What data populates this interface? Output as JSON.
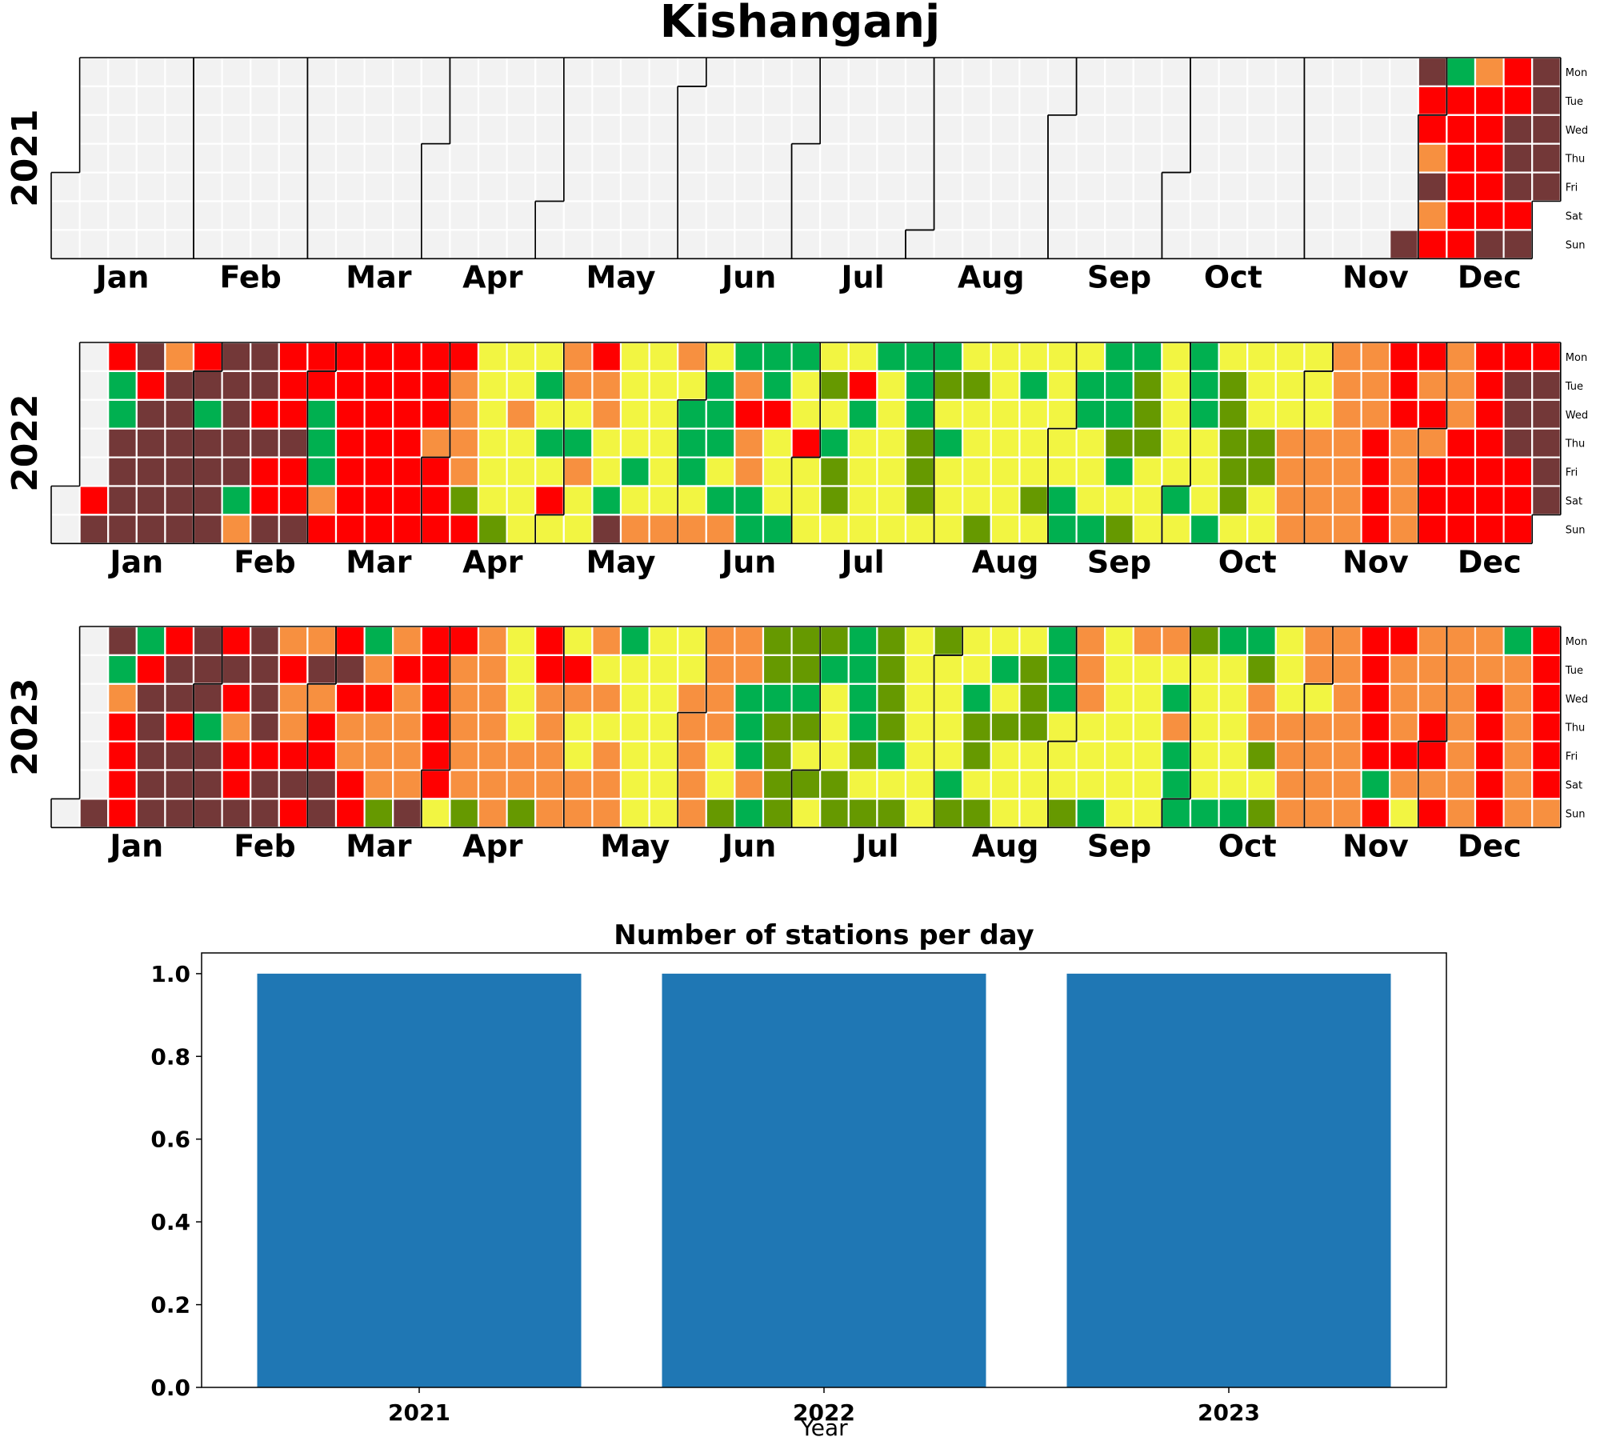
{
  "title": "Kishanganj",
  "weekdays": [
    "Mon",
    "Tue",
    "Wed",
    "Thu",
    "Fri",
    "Sat",
    "Sun"
  ],
  "months": [
    "Jan",
    "Feb",
    "Mar",
    "Apr",
    "May",
    "Jun",
    "Jul",
    "Aug",
    "Sep",
    "Oct",
    "Nov",
    "Dec"
  ],
  "colors": {
    "empty": "#f2f2f2",
    "good": "#00b050",
    "satisfactory": "#669900",
    "moderate": "#f2f542",
    "poor": "#f79040",
    "very_poor": "#ff0000",
    "severe": "#733838",
    "bar": "#1f77b4"
  },
  "chart_data": [
    {
      "type": "heatmap",
      "description_kind": "calendar",
      "year_labels": [
        "2021",
        "2022",
        "2023"
      ],
      "category_codes": {
        "0": "good",
        "1": "satisfactory",
        "2": "moderate",
        "3": "poor",
        "4": "very_poor",
        "5": "severe"
      },
      "weeks": {
        "2021": {
          "47": "xxxxxx5",
          "48": "5443534",
          "49": "0444444",
          "50": "3444445",
          "51": "4455545",
          "52": "5555555",
          "53": "0433"
        },
        "2022": {
          "1": "xxxxx45",
          "2": "4005555",
          "3": "5455555",
          "4": "3555555",
          "5": "4505555",
          "6": "5555503",
          "7": "5545445",
          "8": "4445445",
          "9": "4400034",
          "10": "4444444",
          "11": "4444444",
          "12": "4444444",
          "13": "4443444",
          "14": "4333314",
          "15": "2222221",
          "16": "2232222",
          "17": "2020242",
          "18": "3320322",
          "19": "4332205",
          "20": "2222023",
          "21": "2222223",
          "22": "3200023",
          "23": "2000203",
          "24": "0343300",
          "25": "0042220",
          "26": "0224222",
          "27": "2120112",
          "28": "2402222",
          "29": "0222222",
          "30": "0001112",
          "31": "0120222",
          "32": "2122221",
          "33": "2222222",
          "34": "2022212",
          "35": "2222200",
          "36": "2002220",
          "37": "0001021",
          "38": "0111222",
          "39": "2222202",
          "40": "0002220",
          "41": "2111112",
          "42": "2221122",
          "43": "2223333",
          "44": "2223333",
          "45": "3333333",
          "46": "3334444",
          "47": "4443333",
          "48": "4343444",
          "49": "3334444",
          "50": "4444444",
          "51": "4555444",
          "52": "4555554",
          "53": "55555"
        },
        "2023": {
          "1": "xxxxxx5",
          "2": "5034444",
          "3": "0455555",
          "4": "4554555",
          "5": "5550555",
          "6": "4543445",
          "7": "5555455",
          "8": "3433454",
          "9": "3534455",
          "10": "4543344",
          "11": "0343331",
          "12": "3433335",
          "13": "4444442",
          "14": "4333331",
          "15": "3333333",
          "16": "2222331",
          "17": "4433333",
          "18": "2432233",
          "19": "3232333",
          "20": "0222222",
          "21": "2222222",
          "22": "2233333",
          "23": "3333221",
          "24": "3300030",
          "25": "1101111",
          "26": "1101212",
          "27": "1022211",
          "28": "0000121",
          "29": "1111021",
          "30": "2222222",
          "31": "1222201",
          "32": "2201121",
          "33": "2021222",
          "34": "2111222",
          "35": "0002221",
          "36": "3332220",
          "37": "2222222",
          "38": "3222222",
          "39": "3203000",
          "40": "1222220",
          "41": "0222220",
          "42": "0133121",
          "43": "2223333",
          "44": "3323333",
          "45": "3333333",
          "46": "4444404",
          "47": "4333432",
          "48": "3334434",
          "49": "3333333",
          "50": "3344444",
          "51": "0333333",
          "52": "4444443",
          "53": "3333333"
        }
      }
    },
    {
      "type": "bar",
      "title": "Number of stations per day",
      "categories": [
        "2021",
        "2022",
        "2023"
      ],
      "values": [
        1,
        1,
        1
      ],
      "xlabel": "Year",
      "ylabel": "",
      "ylim": [
        0,
        1.05
      ],
      "yticks": [
        "0.0",
        "0.2",
        "0.4",
        "0.6",
        "0.8",
        "1.0"
      ]
    }
  ]
}
